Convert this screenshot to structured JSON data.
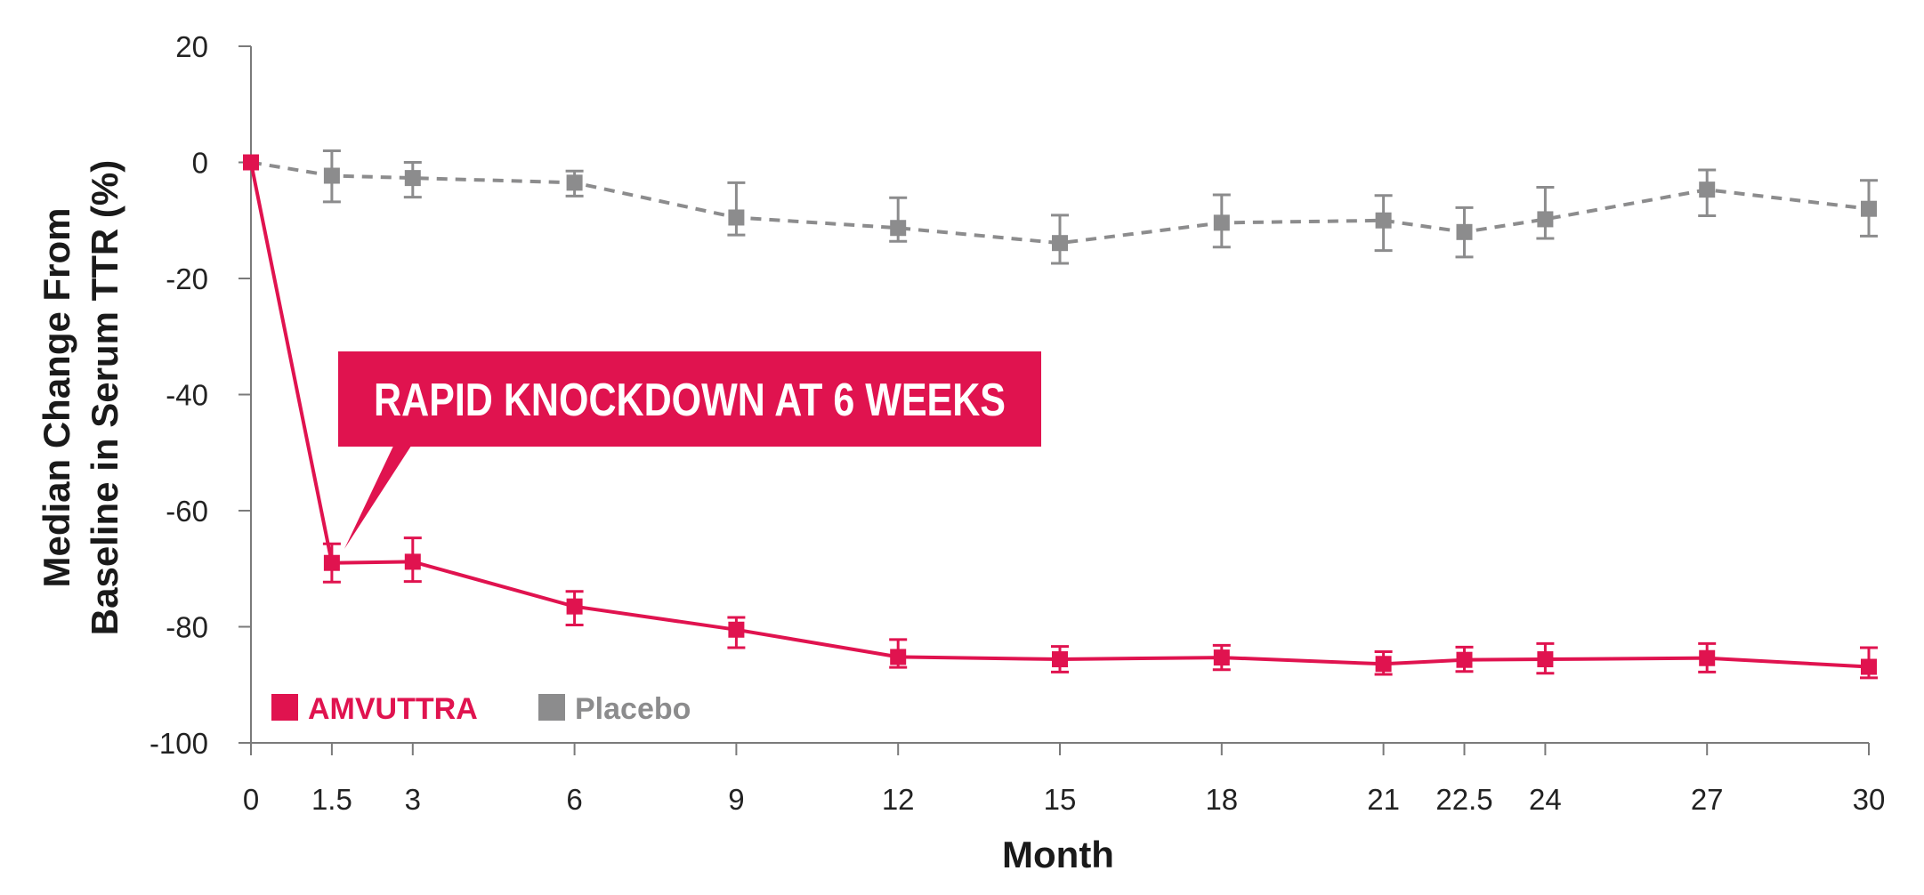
{
  "chart_data": {
    "type": "line",
    "xlabel": "Month",
    "ylabel_lines": [
      "Median Change From",
      "Baseline in Serum TTR (%)"
    ],
    "x_ticks": [
      0,
      1.5,
      3,
      6,
      9,
      12,
      15,
      18,
      21,
      22.5,
      24,
      27,
      30
    ],
    "x_tick_labels": [
      "0",
      "1.5",
      "3",
      "6",
      "9",
      "12",
      "15",
      "18",
      "21",
      "22.5",
      "24",
      "27",
      "30"
    ],
    "y_ticks": [
      20,
      0,
      -20,
      -40,
      -60,
      -80,
      -100
    ],
    "y_tick_labels": [
      "20",
      "0",
      "-20",
      "-40",
      "-60",
      "-80",
      "-100"
    ],
    "xlim": [
      0,
      30
    ],
    "ylim": [
      -100,
      20
    ],
    "grid": false,
    "legend_position": "bottom-left",
    "annotation": "RAPID KNOCKDOWN AT 6 WEEKS",
    "annotation_points_to": {
      "x": 1.5,
      "y": -69
    },
    "series": [
      {
        "name": "AMVUTTRA",
        "color": "#e0134f",
        "line_style": "solid",
        "x": [
          0,
          1.5,
          3,
          6,
          9,
          12,
          15,
          18,
          21,
          22.5,
          24,
          27,
          30
        ],
        "y": [
          0,
          -69,
          -68.8,
          -76.5,
          -80.5,
          -85.2,
          -85.6,
          -85.3,
          -86.4,
          -85.7,
          -85.6,
          -85.4,
          -86.9
        ],
        "err_low": [
          0,
          -72.3,
          -72.2,
          -79.7,
          -83.6,
          -87.0,
          -87.8,
          -87.4,
          -88.2,
          -87.7,
          -88.0,
          -87.8,
          -88.8
        ],
        "err_high": [
          0,
          -65.7,
          -64.7,
          -73.9,
          -78.4,
          -82.2,
          -83.4,
          -83.2,
          -84.3,
          -83.5,
          -82.9,
          -82.9,
          -83.6
        ]
      },
      {
        "name": "Placebo",
        "color": "#8c8c8d",
        "line_style": "dashed",
        "x": [
          0,
          1.5,
          3,
          6,
          9,
          12,
          15,
          18,
          21,
          22.5,
          24,
          27,
          30
        ],
        "y": [
          0,
          -2.3,
          -2.7,
          -3.5,
          -9.5,
          -11.3,
          -13.9,
          -10.4,
          -10.0,
          -12.0,
          -9.8,
          -4.7,
          -8.0
        ],
        "err_low": [
          0,
          -6.8,
          -6.0,
          -5.8,
          -12.5,
          -13.6,
          -17.4,
          -14.6,
          -15.2,
          -16.3,
          -13.1,
          -9.2,
          -12.7
        ],
        "err_high": [
          0,
          2.0,
          0.0,
          -1.5,
          -3.5,
          -6.1,
          -9.1,
          -5.6,
          -5.7,
          -7.8,
          -4.3,
          -1.3,
          -3.1
        ]
      }
    ]
  }
}
